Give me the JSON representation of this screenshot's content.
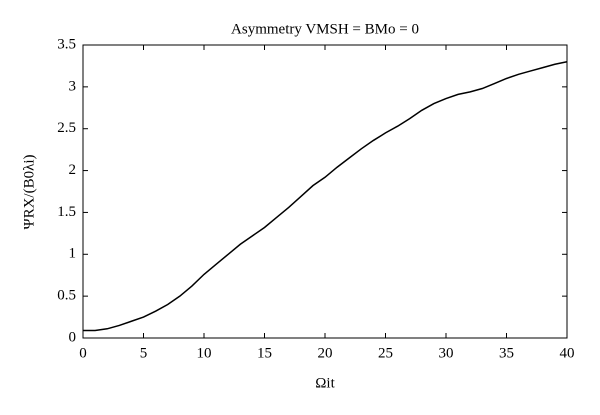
{
  "chart_data": {
    "type": "line",
    "title": "Asymmetry VMSH = BMo = 0",
    "xlabel": "Ωit",
    "ylabel": "ΨRX/(B0λi)",
    "x": [
      0,
      1,
      2,
      3,
      4,
      5,
      6,
      7,
      8,
      9,
      10,
      11,
      12,
      13,
      14,
      15,
      16,
      17,
      18,
      19,
      20,
      21,
      22,
      23,
      24,
      25,
      26,
      27,
      28,
      29,
      30,
      31,
      32,
      33,
      34,
      35,
      36,
      37,
      38,
      39,
      40
    ],
    "series": [
      {
        "color": "#000000",
        "values": [
          0.09,
          0.09,
          0.11,
          0.15,
          0.2,
          0.25,
          0.32,
          0.4,
          0.5,
          0.62,
          0.76,
          0.88,
          1.0,
          1.12,
          1.22,
          1.32,
          1.44,
          1.56,
          1.69,
          1.82,
          1.92,
          2.04,
          2.15,
          2.26,
          2.36,
          2.45,
          2.53,
          2.62,
          2.72,
          2.8,
          2.86,
          2.91,
          2.94,
          2.98,
          3.04,
          3.1,
          3.15,
          3.19,
          3.23,
          3.27,
          3.3
        ]
      }
    ],
    "xlim": [
      0,
      40
    ],
    "xticks": [
      0,
      5,
      10,
      15,
      20,
      25,
      30,
      35,
      40
    ],
    "ylim": [
      0,
      3.5
    ],
    "yticks": [
      0,
      0.5,
      1,
      1.5,
      2,
      2.5,
      3,
      3.5
    ]
  }
}
